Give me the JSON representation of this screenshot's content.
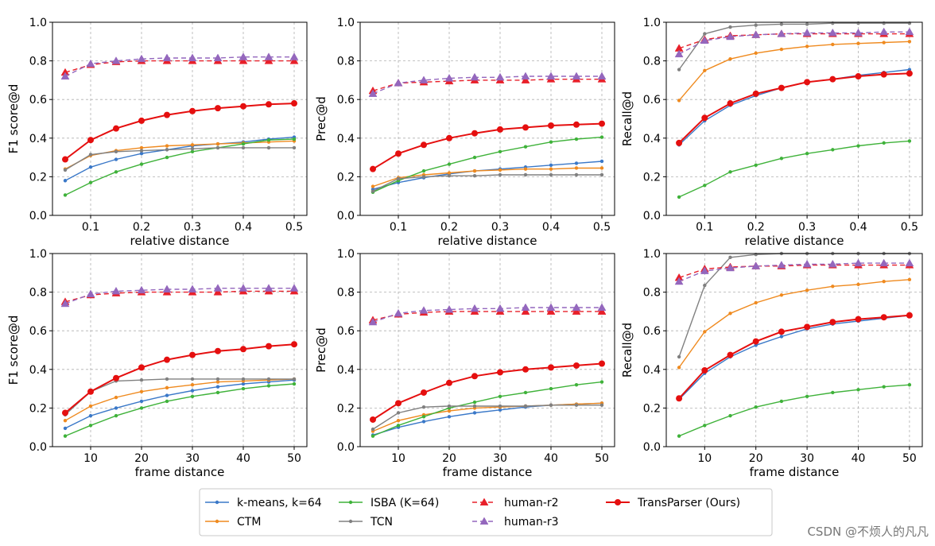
{
  "legend": {
    "items": [
      {
        "label": "k-means, k=64",
        "color": "#3a78c8",
        "marker": "dot",
        "dashed": false
      },
      {
        "label": "CTM",
        "color": "#ef8a1f",
        "marker": "dot",
        "dashed": false
      },
      {
        "label": "ISBA (K=64)",
        "color": "#3fb23a",
        "marker": "dot",
        "dashed": false
      },
      {
        "label": "TCN",
        "color": "#808080",
        "marker": "dot",
        "dashed": false
      },
      {
        "label": "human-r2",
        "color": "#e8202a",
        "marker": "triangle",
        "dashed": true
      },
      {
        "label": "human-r3",
        "color": "#9467bd",
        "marker": "triangle",
        "dashed": true
      },
      {
        "label": "TransParser (Ours)",
        "color": "#e50f0f",
        "marker": "bigdot",
        "dashed": false
      }
    ]
  },
  "watermark": "CSDN @不烦人的凡凡",
  "chart_data": [
    {
      "type": "line",
      "xlabel": "relative distance",
      "ylabel": "F1 score@d",
      "xlim": [
        0.025,
        0.525
      ],
      "ylim": [
        0,
        1
      ],
      "xticks": [
        0.1,
        0.2,
        0.3,
        0.4,
        0.5
      ],
      "xtick_labels": [
        "0.1",
        "0.2",
        "0.3",
        "0.4",
        "0.5"
      ],
      "yticks": [
        0,
        0.2,
        0.4,
        0.6,
        0.8,
        1.0
      ],
      "ytick_labels": [
        "0.0",
        "0.2",
        "0.4",
        "0.6",
        "0.8",
        "1.0"
      ],
      "grid": true,
      "x": [
        0.05,
        0.1,
        0.15,
        0.2,
        0.25,
        0.3,
        0.35,
        0.4,
        0.45,
        0.5
      ],
      "series": [
        {
          "name": "k-means, k=64",
          "values": [
            0.18,
            0.25,
            0.29,
            0.32,
            0.34,
            0.36,
            0.37,
            0.38,
            0.395,
            0.405
          ]
        },
        {
          "name": "CTM",
          "values": [
            0.24,
            0.31,
            0.335,
            0.35,
            0.36,
            0.365,
            0.37,
            0.375,
            0.38,
            0.385
          ]
        },
        {
          "name": "ISBA (K=64)",
          "values": [
            0.105,
            0.17,
            0.225,
            0.265,
            0.3,
            0.33,
            0.35,
            0.37,
            0.39,
            0.395
          ]
        },
        {
          "name": "TCN",
          "values": [
            0.235,
            0.315,
            0.33,
            0.335,
            0.34,
            0.345,
            0.35,
            0.35,
            0.35,
            0.35
          ]
        },
        {
          "name": "human-r2",
          "values": [
            0.74,
            0.78,
            0.795,
            0.8,
            0.8,
            0.8,
            0.8,
            0.8,
            0.8,
            0.8
          ]
        },
        {
          "name": "human-r3",
          "values": [
            0.72,
            0.785,
            0.8,
            0.81,
            0.815,
            0.815,
            0.815,
            0.82,
            0.82,
            0.82
          ]
        },
        {
          "name": "TransParser (Ours)",
          "values": [
            0.29,
            0.39,
            0.45,
            0.49,
            0.52,
            0.54,
            0.555,
            0.565,
            0.575,
            0.58
          ]
        }
      ]
    },
    {
      "type": "line",
      "xlabel": "relative distance",
      "ylabel": "Prec@d",
      "xlim": [
        0.025,
        0.525
      ],
      "ylim": [
        0,
        1
      ],
      "xticks": [
        0.1,
        0.2,
        0.3,
        0.4,
        0.5
      ],
      "xtick_labels": [
        "0.1",
        "0.2",
        "0.3",
        "0.4",
        "0.5"
      ],
      "yticks": [
        0,
        0.2,
        0.4,
        0.6,
        0.8,
        1.0
      ],
      "ytick_labels": [
        "0.0",
        "0.2",
        "0.4",
        "0.6",
        "0.8",
        "1.0"
      ],
      "grid": true,
      "x": [
        0.05,
        0.1,
        0.15,
        0.2,
        0.25,
        0.3,
        0.35,
        0.4,
        0.45,
        0.5
      ],
      "series": [
        {
          "name": "k-means, k=64",
          "values": [
            0.135,
            0.17,
            0.195,
            0.215,
            0.23,
            0.24,
            0.25,
            0.26,
            0.27,
            0.28
          ]
        },
        {
          "name": "CTM",
          "values": [
            0.15,
            0.195,
            0.21,
            0.22,
            0.23,
            0.235,
            0.24,
            0.24,
            0.245,
            0.245
          ]
        },
        {
          "name": "ISBA (K=64)",
          "values": [
            0.12,
            0.18,
            0.23,
            0.265,
            0.3,
            0.33,
            0.355,
            0.38,
            0.395,
            0.405
          ]
        },
        {
          "name": "TCN",
          "values": [
            0.125,
            0.19,
            0.2,
            0.205,
            0.205,
            0.21,
            0.21,
            0.21,
            0.21,
            0.21
          ]
        },
        {
          "name": "human-r2",
          "values": [
            0.645,
            0.685,
            0.69,
            0.695,
            0.7,
            0.7,
            0.7,
            0.705,
            0.705,
            0.705
          ]
        },
        {
          "name": "human-r3",
          "values": [
            0.63,
            0.685,
            0.7,
            0.71,
            0.715,
            0.715,
            0.72,
            0.72,
            0.72,
            0.72
          ]
        },
        {
          "name": "TransParser (Ours)",
          "values": [
            0.24,
            0.32,
            0.365,
            0.4,
            0.425,
            0.445,
            0.455,
            0.465,
            0.47,
            0.475
          ]
        }
      ]
    },
    {
      "type": "line",
      "xlabel": "relative distance",
      "ylabel": "Recall@d",
      "xlim": [
        0.025,
        0.525
      ],
      "ylim": [
        0,
        1
      ],
      "xticks": [
        0.1,
        0.2,
        0.3,
        0.4,
        0.5
      ],
      "xtick_labels": [
        "0.1",
        "0.2",
        "0.3",
        "0.4",
        "0.5"
      ],
      "yticks": [
        0,
        0.2,
        0.4,
        0.6,
        0.8,
        1.0
      ],
      "ytick_labels": [
        "0.0",
        "0.2",
        "0.4",
        "0.6",
        "0.8",
        "1.0"
      ],
      "grid": true,
      "x": [
        0.05,
        0.1,
        0.15,
        0.2,
        0.25,
        0.3,
        0.35,
        0.4,
        0.45,
        0.5
      ],
      "series": [
        {
          "name": "k-means, k=64",
          "values": [
            0.365,
            0.49,
            0.57,
            0.62,
            0.66,
            0.69,
            0.705,
            0.725,
            0.74,
            0.755
          ]
        },
        {
          "name": "CTM",
          "values": [
            0.595,
            0.75,
            0.81,
            0.84,
            0.86,
            0.875,
            0.885,
            0.89,
            0.895,
            0.9
          ]
        },
        {
          "name": "ISBA (K=64)",
          "values": [
            0.095,
            0.155,
            0.225,
            0.26,
            0.295,
            0.32,
            0.34,
            0.36,
            0.375,
            0.385
          ]
        },
        {
          "name": "TCN",
          "values": [
            0.755,
            0.94,
            0.975,
            0.985,
            0.99,
            0.99,
            0.995,
            0.995,
            0.995,
            0.995
          ]
        },
        {
          "name": "human-r2",
          "values": [
            0.865,
            0.91,
            0.93,
            0.935,
            0.94,
            0.94,
            0.94,
            0.94,
            0.94,
            0.94
          ]
        },
        {
          "name": "human-r3",
          "values": [
            0.835,
            0.905,
            0.925,
            0.935,
            0.94,
            0.945,
            0.945,
            0.945,
            0.95,
            0.95
          ]
        },
        {
          "name": "TransParser (Ours)",
          "values": [
            0.375,
            0.505,
            0.58,
            0.63,
            0.66,
            0.69,
            0.705,
            0.72,
            0.73,
            0.735
          ]
        }
      ]
    },
    {
      "type": "line",
      "xlabel": "frame distance",
      "ylabel": "F1 score@d",
      "xlim": [
        2.5,
        52.5
      ],
      "ylim": [
        0,
        1
      ],
      "xticks": [
        10,
        20,
        30,
        40,
        50
      ],
      "xtick_labels": [
        "10",
        "20",
        "30",
        "40",
        "50"
      ],
      "yticks": [
        0,
        0.2,
        0.4,
        0.6,
        0.8,
        1.0
      ],
      "ytick_labels": [
        "0.0",
        "0.2",
        "0.4",
        "0.6",
        "0.8",
        "1.0"
      ],
      "grid": true,
      "x": [
        5,
        10,
        15,
        20,
        25,
        30,
        35,
        40,
        45,
        50
      ],
      "series": [
        {
          "name": "k-means, k=64",
          "values": [
            0.095,
            0.16,
            0.2,
            0.235,
            0.265,
            0.29,
            0.31,
            0.325,
            0.335,
            0.345
          ]
        },
        {
          "name": "CTM",
          "values": [
            0.135,
            0.21,
            0.255,
            0.285,
            0.305,
            0.32,
            0.335,
            0.34,
            0.345,
            0.35
          ]
        },
        {
          "name": "ISBA (K=64)",
          "values": [
            0.055,
            0.11,
            0.16,
            0.2,
            0.235,
            0.26,
            0.28,
            0.3,
            0.315,
            0.325
          ]
        },
        {
          "name": "TCN",
          "values": [
            0.165,
            0.285,
            0.34,
            0.345,
            0.35,
            0.35,
            0.35,
            0.35,
            0.35,
            0.35
          ]
        },
        {
          "name": "human-r2",
          "values": [
            0.75,
            0.785,
            0.795,
            0.8,
            0.8,
            0.8,
            0.8,
            0.805,
            0.805,
            0.805
          ]
        },
        {
          "name": "human-r3",
          "values": [
            0.74,
            0.79,
            0.805,
            0.81,
            0.815,
            0.815,
            0.82,
            0.82,
            0.82,
            0.82
          ]
        },
        {
          "name": "TransParser (Ours)",
          "values": [
            0.175,
            0.285,
            0.355,
            0.41,
            0.45,
            0.475,
            0.495,
            0.505,
            0.52,
            0.53
          ]
        }
      ]
    },
    {
      "type": "line",
      "xlabel": "frame distance",
      "ylabel": "Prec@d",
      "xlim": [
        2.5,
        52.5
      ],
      "ylim": [
        0,
        1
      ],
      "xticks": [
        10,
        20,
        30,
        40,
        50
      ],
      "xtick_labels": [
        "10",
        "20",
        "30",
        "40",
        "50"
      ],
      "yticks": [
        0,
        0.2,
        0.4,
        0.6,
        0.8,
        1.0
      ],
      "ytick_labels": [
        "0.0",
        "0.2",
        "0.4",
        "0.6",
        "0.8",
        "1.0"
      ],
      "grid": true,
      "x": [
        5,
        10,
        15,
        20,
        25,
        30,
        35,
        40,
        45,
        50
      ],
      "series": [
        {
          "name": "k-means, k=64",
          "values": [
            0.06,
            0.1,
            0.13,
            0.155,
            0.175,
            0.19,
            0.205,
            0.215,
            0.22,
            0.225
          ]
        },
        {
          "name": "CTM",
          "values": [
            0.08,
            0.135,
            0.165,
            0.185,
            0.2,
            0.205,
            0.21,
            0.215,
            0.22,
            0.225
          ]
        },
        {
          "name": "ISBA (K=64)",
          "values": [
            0.055,
            0.11,
            0.155,
            0.2,
            0.23,
            0.26,
            0.28,
            0.3,
            0.32,
            0.335
          ]
        },
        {
          "name": "TCN",
          "values": [
            0.09,
            0.175,
            0.205,
            0.21,
            0.21,
            0.21,
            0.21,
            0.215,
            0.215,
            0.215
          ]
        },
        {
          "name": "human-r2",
          "values": [
            0.655,
            0.685,
            0.695,
            0.7,
            0.7,
            0.7,
            0.7,
            0.7,
            0.7,
            0.7
          ]
        },
        {
          "name": "human-r3",
          "values": [
            0.645,
            0.69,
            0.705,
            0.71,
            0.715,
            0.715,
            0.72,
            0.72,
            0.72,
            0.72
          ]
        },
        {
          "name": "TransParser (Ours)",
          "values": [
            0.14,
            0.225,
            0.28,
            0.33,
            0.365,
            0.385,
            0.4,
            0.41,
            0.42,
            0.43
          ]
        }
      ]
    },
    {
      "type": "line",
      "xlabel": "frame distance",
      "ylabel": "Recall@d",
      "xlim": [
        2.5,
        52.5
      ],
      "ylim": [
        0,
        1
      ],
      "xticks": [
        10,
        20,
        30,
        40,
        50
      ],
      "xtick_labels": [
        "10",
        "20",
        "30",
        "40",
        "50"
      ],
      "yticks": [
        0,
        0.2,
        0.4,
        0.6,
        0.8,
        1.0
      ],
      "ytick_labels": [
        "0.0",
        "0.2",
        "0.4",
        "0.6",
        "0.8",
        "1.0"
      ],
      "grid": true,
      "x": [
        5,
        10,
        15,
        20,
        25,
        30,
        35,
        40,
        45,
        50
      ],
      "series": [
        {
          "name": "k-means, k=64",
          "values": [
            0.245,
            0.38,
            0.465,
            0.525,
            0.57,
            0.61,
            0.635,
            0.65,
            0.665,
            0.68
          ]
        },
        {
          "name": "CTM",
          "values": [
            0.41,
            0.595,
            0.69,
            0.745,
            0.785,
            0.81,
            0.83,
            0.84,
            0.855,
            0.865
          ]
        },
        {
          "name": "ISBA (K=64)",
          "values": [
            0.055,
            0.11,
            0.16,
            0.205,
            0.235,
            0.26,
            0.28,
            0.295,
            0.31,
            0.32
          ]
        },
        {
          "name": "TCN",
          "values": [
            0.465,
            0.835,
            0.98,
            0.995,
            1.0,
            1.0,
            1.0,
            1.0,
            1.0,
            1.0
          ]
        },
        {
          "name": "human-r2",
          "values": [
            0.875,
            0.92,
            0.93,
            0.935,
            0.935,
            0.94,
            0.94,
            0.94,
            0.94,
            0.94
          ]
        },
        {
          "name": "human-r3",
          "values": [
            0.855,
            0.91,
            0.925,
            0.935,
            0.94,
            0.945,
            0.945,
            0.95,
            0.95,
            0.95
          ]
        },
        {
          "name": "TransParser (Ours)",
          "values": [
            0.25,
            0.395,
            0.475,
            0.545,
            0.595,
            0.62,
            0.645,
            0.66,
            0.67,
            0.68
          ]
        }
      ]
    }
  ]
}
